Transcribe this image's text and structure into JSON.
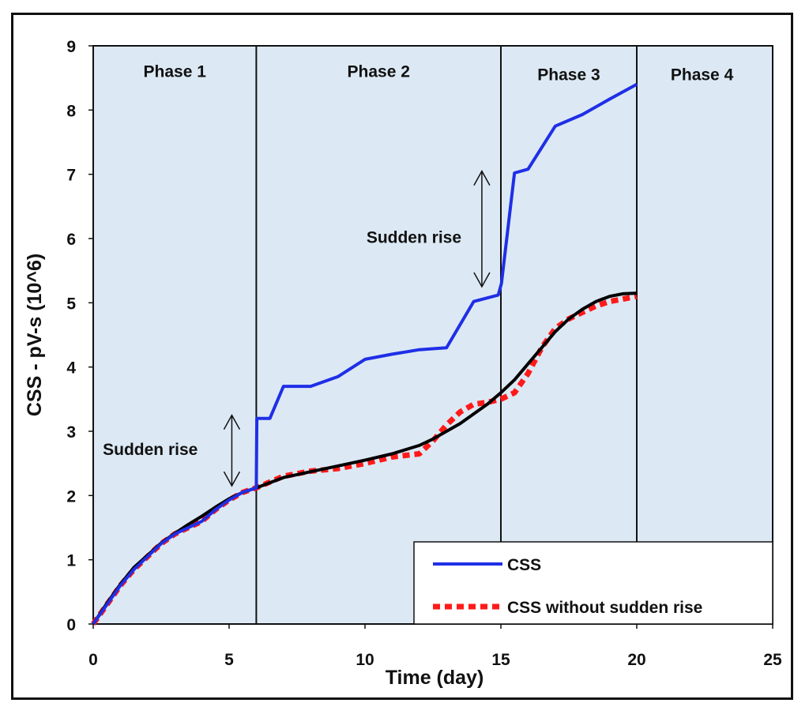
{
  "chart_data": {
    "type": "line",
    "xlabel": "Time (day)",
    "ylabel": "CSS - pV-s (10^6)",
    "xlim": [
      0,
      25
    ],
    "ylim": [
      0,
      9
    ],
    "xticks": [
      0,
      5,
      10,
      15,
      20,
      25
    ],
    "yticks": [
      0,
      1,
      2,
      3,
      4,
      5,
      6,
      7,
      8,
      9
    ],
    "grid": false,
    "background_color": "#dce9f5",
    "phase_boundaries": [
      6,
      15,
      20
    ],
    "phases": [
      {
        "label": "Phase 1",
        "x_center": 3,
        "y": 8.6
      },
      {
        "label": "Phase 2",
        "x_center": 10.5,
        "y": 8.6
      },
      {
        "label": "Phase 3",
        "x_center": 17.5,
        "y": 8.55
      },
      {
        "label": "Phase 4",
        "x_center": 22.4,
        "y": 8.55
      }
    ],
    "series": [
      {
        "name": "CSS",
        "color": "#1f2fe6",
        "style": "solid",
        "x": [
          0,
          0.5,
          1,
          1.5,
          2,
          2.5,
          3,
          3.5,
          4,
          4.5,
          5,
          5.5,
          6,
          6.02,
          6.5,
          7,
          8,
          9,
          10,
          11,
          12,
          13,
          14,
          14.9,
          15.02,
          15.5,
          16,
          17,
          18,
          19,
          20
        ],
        "values": [
          0,
          0.3,
          0.6,
          0.85,
          1.05,
          1.25,
          1.4,
          1.5,
          1.6,
          1.78,
          1.93,
          2.05,
          2.12,
          3.2,
          3.2,
          3.7,
          3.7,
          3.85,
          4.12,
          4.2,
          4.27,
          4.3,
          5.02,
          5.12,
          5.3,
          7.02,
          7.08,
          7.75,
          7.93,
          8.17,
          8.4
        ]
      },
      {
        "name": "CSS without sudden rise",
        "color": "#ff1a1a",
        "style": "dotted",
        "x": [
          0,
          0.5,
          1,
          1.5,
          2,
          2.5,
          3,
          3.5,
          4,
          4.5,
          5,
          5.5,
          6,
          7,
          8,
          9,
          10,
          11,
          12,
          12.5,
          13,
          13.5,
          14,
          14.5,
          15,
          15.5,
          16,
          16.5,
          17,
          17.5,
          18,
          18.5,
          19,
          19.5,
          20
        ],
        "values": [
          0,
          0.3,
          0.6,
          0.85,
          1.05,
          1.25,
          1.4,
          1.5,
          1.6,
          1.78,
          1.93,
          2.05,
          2.12,
          2.3,
          2.38,
          2.42,
          2.5,
          2.6,
          2.65,
          2.85,
          3.1,
          3.3,
          3.42,
          3.45,
          3.5,
          3.6,
          3.9,
          4.3,
          4.6,
          4.75,
          4.85,
          4.95,
          5.02,
          5.06,
          5.1
        ]
      },
      {
        "name": "",
        "color": "#000000",
        "style": "solid",
        "x": [
          0,
          0.5,
          1,
          1.5,
          2,
          2.5,
          3,
          3.5,
          4,
          4.5,
          5,
          5.5,
          6,
          7,
          8,
          9,
          10,
          11,
          12,
          12.5,
          13,
          13.5,
          14,
          14.5,
          15,
          15.5,
          16,
          16.5,
          17,
          17.5,
          18,
          18.5,
          19,
          19.5,
          20
        ],
        "values": [
          0,
          0.32,
          0.62,
          0.88,
          1.07,
          1.26,
          1.41,
          1.55,
          1.68,
          1.82,
          1.95,
          2.05,
          2.12,
          2.28,
          2.37,
          2.46,
          2.55,
          2.65,
          2.78,
          2.88,
          3.0,
          3.12,
          3.27,
          3.42,
          3.6,
          3.8,
          4.05,
          4.3,
          4.55,
          4.75,
          4.9,
          5.02,
          5.1,
          5.14,
          5.15
        ]
      }
    ],
    "annotations": [
      {
        "text": "Sudden rise",
        "arrow_x": 5.1,
        "arrow_y": [
          2.15,
          3.25
        ],
        "text_x": 2.1,
        "text_y": 2.72
      },
      {
        "text": "Sudden rise",
        "arrow_x": 14.3,
        "arrow_y": [
          5.25,
          7.05
        ],
        "text_x": 11.8,
        "text_y": 6.02
      }
    ],
    "legend": {
      "position": "bottom-right",
      "entries": [
        {
          "label": "CSS",
          "color": "#1f2fe6",
          "style": "solid"
        },
        {
          "label": "CSS without sudden rise",
          "color": "#ff1a1a",
          "style": "dotted"
        }
      ]
    }
  }
}
